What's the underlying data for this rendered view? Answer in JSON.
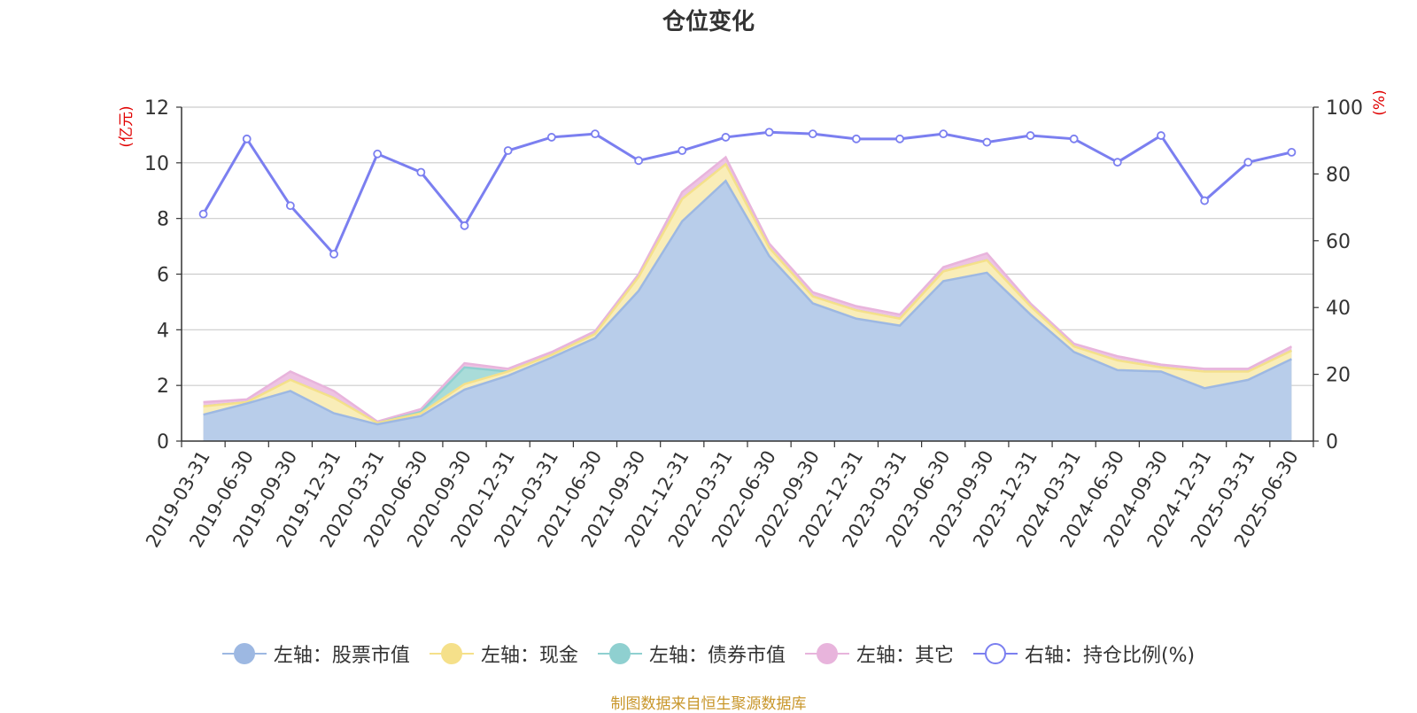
{
  "chart_data": {
    "type": "area",
    "title": "仓位变化",
    "left_axis_unit": "(亿元)",
    "right_axis_unit": "(%)",
    "ylim_left": [
      0,
      12
    ],
    "yticks_left": [
      "0",
      "2",
      "4",
      "6",
      "8",
      "10",
      "12"
    ],
    "ylim_right": [
      0,
      100
    ],
    "yticks_right": [
      "0",
      "20",
      "40",
      "60",
      "80",
      "100"
    ],
    "grid": true,
    "legend_position": "bottom",
    "categories": [
      "2019-03-31",
      "2019-06-30",
      "2019-09-30",
      "2019-12-31",
      "2020-03-31",
      "2020-06-30",
      "2020-09-30",
      "2020-12-31",
      "2021-03-31",
      "2021-06-30",
      "2021-09-30",
      "2021-12-31",
      "2022-03-31",
      "2022-06-30",
      "2022-09-30",
      "2022-12-31",
      "2023-03-31",
      "2023-06-30",
      "2023-09-30",
      "2023-12-31",
      "2024-03-31",
      "2024-06-30",
      "2024-09-30",
      "2024-12-31",
      "2025-03-31",
      "2025-06-30"
    ],
    "series": [
      {
        "name": "左轴：股票市值",
        "axis": "left",
        "kind": "stacked-area",
        "color": "#9db8e2",
        "fill": "#b8cdea",
        "values": [
          0.95,
          1.35,
          1.8,
          1.0,
          0.6,
          0.9,
          1.85,
          2.35,
          3.0,
          3.7,
          5.4,
          7.9,
          9.35,
          6.65,
          4.95,
          4.4,
          4.15,
          5.75,
          6.05,
          4.55,
          3.2,
          2.55,
          2.5,
          1.9,
          2.2,
          2.95
        ]
      },
      {
        "name": "左轴：现金",
        "axis": "left",
        "kind": "stacked-area",
        "color": "#f5e08a",
        "fill": "#f9edb8",
        "values": [
          0.3,
          0.05,
          0.4,
          0.55,
          0.05,
          0.1,
          0.2,
          0.15,
          0.1,
          0.15,
          0.5,
          0.8,
          0.6,
          0.3,
          0.25,
          0.3,
          0.25,
          0.35,
          0.45,
          0.3,
          0.2,
          0.35,
          0.15,
          0.6,
          0.3,
          0.3
        ]
      },
      {
        "name": "左轴：债券市值",
        "axis": "left",
        "kind": "stacked-area",
        "color": "#8fd0d0",
        "fill": "#a9dcd9",
        "values": [
          0.0,
          0.0,
          0.0,
          0.0,
          0.0,
          0.05,
          0.6,
          0.0,
          0.0,
          0.0,
          0.0,
          0.0,
          0.0,
          0.0,
          0.0,
          0.0,
          0.0,
          0.0,
          0.0,
          0.0,
          0.0,
          0.0,
          0.0,
          0.0,
          0.0,
          0.0
        ]
      },
      {
        "name": "左轴：其它",
        "axis": "left",
        "kind": "stacked-area",
        "color": "#e8b4dc",
        "fill": "#eec3e3",
        "values": [
          0.15,
          0.1,
          0.3,
          0.25,
          0.05,
          0.1,
          0.15,
          0.1,
          0.1,
          0.1,
          0.1,
          0.25,
          0.25,
          0.15,
          0.15,
          0.15,
          0.15,
          0.15,
          0.25,
          0.1,
          0.1,
          0.15,
          0.1,
          0.1,
          0.1,
          0.15
        ]
      },
      {
        "name": "右轴：持仓比例(%)",
        "axis": "right",
        "kind": "line",
        "color": "#7b7ff0",
        "values": [
          68,
          90.5,
          70.5,
          56,
          86,
          80.5,
          64.5,
          87,
          91,
          92,
          84,
          87,
          91,
          92.5,
          92,
          90.5,
          90.5,
          92,
          89.5,
          91.5,
          90.5,
          83.5,
          91.5,
          72,
          83.5,
          86.5
        ]
      }
    ]
  },
  "source_note": "制图数据来自恒生聚源数据库"
}
